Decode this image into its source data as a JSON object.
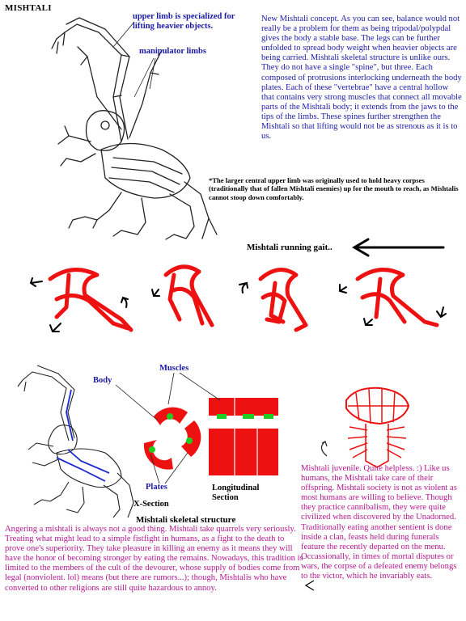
{
  "title": "MISHTALI",
  "labels": {
    "upper_limb": "upper limb is specialized for lifting heavier objects.",
    "manipulator": "manipulator limbs",
    "gait": "Mishtali running gait..",
    "muscles": "Muscles",
    "body": "Body",
    "plates": "Plates",
    "xsection": "X-Section",
    "longitudinal": "Longitudinal Section",
    "skeletal": "Mishtali skeletal structure"
  },
  "concept_text": "New Mishtali concept. As you can see, balance would not really be a problem for them as being tripodal/polypdal gives the body a stable base. The legs can be further unfolded to spread body weight when heavier objects are being carried. Mishtali skeletal structure is unlike ours. They do not have a single \"spine\", but three. Each composed of protrusions interlocking underneath the body plates. Each of these \"vertebrae\" have a central hollow that contains very strong muscles that connect all movable parts of the Mishtali body; it extends from the jaws to the tips of the limbs. These spines further strengthen the Mishtali so that lifting would not be as strenous as it is to us.",
  "footnote": "*The larger central upper limb was originally used to hold heavy corpses (traditionally that of fallen Mishtali enemies) up for the mouth to reach, as Mishtalis cannot stoop down comfortably.",
  "anger_text": "Angering a mishtali is always not a good thing. Mishtali take quarrels very seriously. Treating what might lead to a simple fistfight in humans, as a fight to the death to prove one's superiority. They take pleasure in killing an enemy as it means they will have the honor of becoming stronger by eating the remains. Nowadays, this tradition is limited to the members of the cult of the devourer, whose supply of bodies come from legal (nonviolent. lol) means (but there are rumors...); though, Mishtalis who have converted to other religions are still quite hazardous to annoy.",
  "juvenile_text": "Mishtali juvenile. Quite helpless. :) Like us humans, the Mishtali take care of their offspring. Mishtali society is not as violent as most humans are willing to believe. Though they practice cannibalism, they were quite civilized when discovered by the Unadorned. Traditionally eating another sentient is done inside a clan, feasts held during funerals feature the recently departed on the menu. Occassionally, in times of mortal disputes or wars, the corpse of a defeated enemy belongs to the victor, which he invariably eats.",
  "colors": {
    "blue_text": "#1a1aa8",
    "purple_text": "#b5178f",
    "red_fill": "#ee1111",
    "green_dot": "#22cc22"
  }
}
